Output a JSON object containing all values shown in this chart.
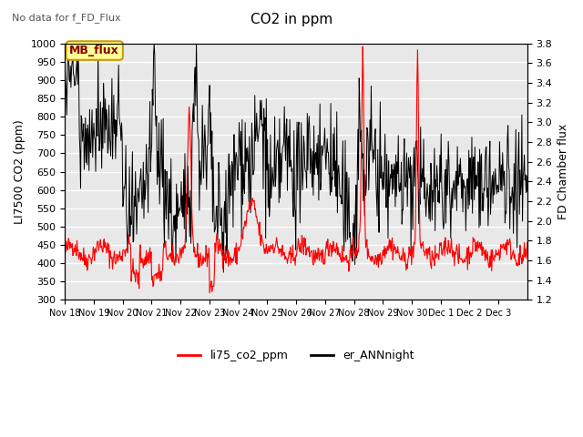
{
  "title": "CO2 in ppm",
  "note": "No data for f_FD_Flux",
  "ylabel_left": "LI7500 CO2 (ppm)",
  "ylabel_right": "FD Chamber flux",
  "ylim_left": [
    300,
    1000
  ],
  "ylim_right": [
    1.2,
    3.8
  ],
  "date_labels": [
    "Nov 18",
    "Nov 19",
    "Nov 20",
    "Nov 21",
    "Nov 22",
    "Nov 23",
    "Nov 24",
    "Nov 25",
    "Nov 26",
    "Nov 27",
    "Nov 28",
    "Nov 29",
    "Nov 30",
    "Dec 1",
    "Dec 2",
    "Dec 3"
  ],
  "legend_entries": [
    "li75_co2_ppm",
    "er_ANNnight"
  ],
  "red_color": "#ff0000",
  "black_color": "#000000",
  "background_color": "#e8e8e8",
  "legend_box_color": "#ffff99",
  "legend_box_border": "#cc9900",
  "mb_flux_label": "MB_flux",
  "grid_color": "#ffffff",
  "grid_linewidth": 1.0,
  "fig_bg": "#ffffff",
  "yticks_left": [
    300,
    350,
    400,
    450,
    500,
    550,
    600,
    650,
    700,
    750,
    800,
    850,
    900,
    950,
    1000
  ],
  "yticks_right": [
    1.2,
    1.4,
    1.6,
    1.8,
    2.0,
    2.2,
    2.4,
    2.6,
    2.8,
    3.0,
    3.2,
    3.4,
    3.6,
    3.8
  ]
}
